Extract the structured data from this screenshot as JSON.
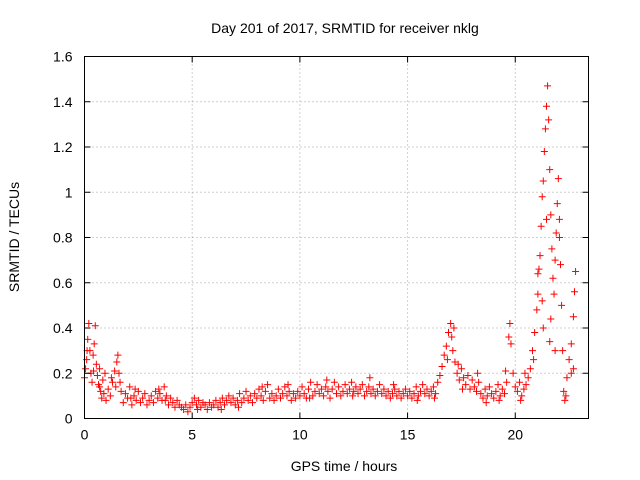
{
  "chart_data": {
    "type": "scatter",
    "title": "Day 201 of 2017, SRMTID for receiver nklg",
    "xlabel": "GPS time / hours",
    "ylabel": "SRMTID / TECUs",
    "xlim": [
      0,
      23.4
    ],
    "ylim": [
      0,
      1.6
    ],
    "xticks": [
      0,
      5,
      10,
      15,
      20
    ],
    "xtick_labels": [
      "0",
      "5",
      "10",
      "15",
      "20"
    ],
    "yticks": [
      0,
      0.2,
      0.4,
      0.6,
      0.8,
      1.0,
      1.2,
      1.4,
      1.6
    ],
    "ytick_labels": [
      "0",
      "0.2",
      "0.4",
      "0.6",
      "0.8",
      "1",
      "1.2",
      "1.4",
      "1.6"
    ],
    "grid": true,
    "marker": "+",
    "series_color": "#ff0000",
    "series": [
      {
        "name": "SRMTID",
        "points": [
          [
            0.0,
            0.18
          ],
          [
            0.05,
            0.22
          ],
          [
            0.1,
            0.26
          ],
          [
            0.15,
            0.35
          ],
          [
            0.2,
            0.42
          ],
          [
            0.25,
            0.3
          ],
          [
            0.3,
            0.2
          ],
          [
            0.35,
            0.16
          ],
          [
            0.4,
            0.28
          ],
          [
            0.45,
            0.33
          ],
          [
            0.5,
            0.41
          ],
          [
            0.55,
            0.24
          ],
          [
            0.6,
            0.19
          ],
          [
            0.65,
            0.15
          ],
          [
            0.7,
            0.22
          ],
          [
            0.75,
            0.12
          ],
          [
            0.8,
            0.09
          ],
          [
            0.85,
            0.17
          ],
          [
            0.9,
            0.11
          ],
          [
            0.95,
            0.2
          ],
          [
            1.0,
            0.08
          ],
          [
            1.1,
            0.13
          ],
          [
            1.2,
            0.1
          ],
          [
            1.3,
            0.16
          ],
          [
            1.4,
            0.21
          ],
          [
            1.5,
            0.25
          ],
          [
            1.55,
            0.28
          ],
          [
            1.6,
            0.2
          ],
          [
            1.7,
            0.12
          ],
          [
            1.8,
            0.07
          ],
          [
            1.9,
            0.11
          ],
          [
            2.0,
            0.09
          ],
          [
            2.1,
            0.14
          ],
          [
            2.2,
            0.06
          ],
          [
            2.3,
            0.1
          ],
          [
            2.4,
            0.08
          ],
          [
            2.5,
            0.12
          ],
          [
            2.6,
            0.07
          ],
          [
            2.7,
            0.09
          ],
          [
            2.8,
            0.11
          ],
          [
            2.9,
            0.06
          ],
          [
            3.0,
            0.08
          ],
          [
            3.1,
            0.1
          ],
          [
            3.2,
            0.07
          ],
          [
            3.3,
            0.12
          ],
          [
            3.4,
            0.09
          ],
          [
            3.5,
            0.11
          ],
          [
            3.6,
            0.08
          ],
          [
            3.7,
            0.14
          ],
          [
            3.8,
            0.1
          ],
          [
            3.9,
            0.06
          ],
          [
            4.0,
            0.09
          ],
          [
            4.1,
            0.07
          ],
          [
            4.2,
            0.05
          ],
          [
            4.3,
            0.08
          ],
          [
            4.4,
            0.06
          ],
          [
            4.5,
            0.05
          ],
          [
            4.6,
            0.04
          ],
          [
            4.7,
            0.06
          ],
          [
            4.8,
            0.03
          ],
          [
            4.9,
            0.05
          ],
          [
            5.0,
            0.07
          ],
          [
            5.1,
            0.09
          ],
          [
            5.2,
            0.06
          ],
          [
            5.3,
            0.08
          ],
          [
            5.4,
            0.05
          ],
          [
            5.5,
            0.07
          ],
          [
            5.6,
            0.06
          ],
          [
            5.7,
            0.04
          ],
          [
            5.8,
            0.07
          ],
          [
            5.9,
            0.05
          ],
          [
            6.0,
            0.06
          ],
          [
            6.1,
            0.08
          ],
          [
            6.2,
            0.05
          ],
          [
            6.3,
            0.07
          ],
          [
            6.4,
            0.09
          ],
          [
            6.5,
            0.06
          ],
          [
            6.6,
            0.08
          ],
          [
            6.7,
            0.1
          ],
          [
            6.8,
            0.07
          ],
          [
            6.9,
            0.09
          ],
          [
            7.0,
            0.06
          ],
          [
            7.1,
            0.08
          ],
          [
            7.2,
            0.11
          ],
          [
            7.3,
            0.07
          ],
          [
            7.4,
            0.09
          ],
          [
            7.5,
            0.12
          ],
          [
            7.6,
            0.08
          ],
          [
            7.7,
            0.1
          ],
          [
            7.8,
            0.07
          ],
          [
            7.9,
            0.11
          ],
          [
            8.0,
            0.09
          ],
          [
            8.1,
            0.13
          ],
          [
            8.2,
            0.1
          ],
          [
            8.3,
            0.08
          ],
          [
            8.4,
            0.12
          ],
          [
            8.5,
            0.15
          ],
          [
            8.6,
            0.09
          ],
          [
            8.7,
            0.11
          ],
          [
            8.8,
            0.08
          ],
          [
            8.9,
            0.1
          ],
          [
            9.0,
            0.13
          ],
          [
            9.1,
            0.09
          ],
          [
            9.2,
            0.11
          ],
          [
            9.3,
            0.14
          ],
          [
            9.4,
            0.1
          ],
          [
            9.5,
            0.12
          ],
          [
            9.6,
            0.08
          ],
          [
            9.7,
            0.11
          ],
          [
            9.8,
            0.09
          ],
          [
            9.9,
            0.12
          ],
          [
            10.0,
            0.1
          ],
          [
            10.1,
            0.14
          ],
          [
            10.2,
            0.11
          ],
          [
            10.3,
            0.09
          ],
          [
            10.4,
            0.13
          ],
          [
            10.5,
            0.16
          ],
          [
            10.6,
            0.1
          ],
          [
            10.7,
            0.12
          ],
          [
            10.8,
            0.15
          ],
          [
            10.9,
            0.11
          ],
          [
            11.0,
            0.13
          ],
          [
            11.1,
            0.1
          ],
          [
            11.2,
            0.14
          ],
          [
            11.3,
            0.12
          ],
          [
            11.4,
            0.09
          ],
          [
            11.5,
            0.13
          ],
          [
            11.6,
            0.16
          ],
          [
            11.7,
            0.11
          ],
          [
            11.8,
            0.14
          ],
          [
            11.9,
            0.1
          ],
          [
            12.0,
            0.12
          ],
          [
            12.1,
            0.15
          ],
          [
            12.2,
            0.11
          ],
          [
            12.3,
            0.13
          ],
          [
            12.4,
            0.16
          ],
          [
            12.5,
            0.12
          ],
          [
            12.6,
            0.14
          ],
          [
            12.7,
            0.11
          ],
          [
            12.8,
            0.13
          ],
          [
            12.9,
            0.15
          ],
          [
            13.0,
            0.1
          ],
          [
            13.1,
            0.12
          ],
          [
            13.2,
            0.14
          ],
          [
            13.3,
            0.11
          ],
          [
            13.4,
            0.13
          ],
          [
            13.5,
            0.1
          ],
          [
            13.6,
            0.12
          ],
          [
            13.7,
            0.15
          ],
          [
            13.8,
            0.11
          ],
          [
            13.9,
            0.13
          ],
          [
            14.0,
            0.1
          ],
          [
            14.1,
            0.12
          ],
          [
            14.2,
            0.09
          ],
          [
            14.3,
            0.11
          ],
          [
            14.4,
            0.13
          ],
          [
            14.5,
            0.1
          ],
          [
            14.6,
            0.12
          ],
          [
            14.7,
            0.09
          ],
          [
            14.8,
            0.11
          ],
          [
            14.9,
            0.13
          ],
          [
            15.0,
            0.1
          ],
          [
            15.1,
            0.12
          ],
          [
            15.2,
            0.09
          ],
          [
            15.3,
            0.11
          ],
          [
            15.4,
            0.14
          ],
          [
            15.5,
            0.1
          ],
          [
            15.6,
            0.12
          ],
          [
            15.7,
            0.15
          ],
          [
            15.8,
            0.11
          ],
          [
            15.9,
            0.13
          ],
          [
            16.0,
            0.1
          ],
          [
            16.1,
            0.12
          ],
          [
            16.2,
            0.14
          ],
          [
            16.3,
            0.11
          ],
          [
            16.4,
            0.16
          ],
          [
            16.5,
            0.19
          ],
          [
            16.6,
            0.23
          ],
          [
            16.7,
            0.28
          ],
          [
            16.8,
            0.32
          ],
          [
            16.9,
            0.38
          ],
          [
            17.0,
            0.42
          ],
          [
            17.05,
            0.36
          ],
          [
            17.1,
            0.3
          ],
          [
            17.2,
            0.25
          ],
          [
            17.3,
            0.2
          ],
          [
            17.4,
            0.17
          ],
          [
            17.5,
            0.22
          ],
          [
            17.6,
            0.18
          ],
          [
            17.7,
            0.15
          ],
          [
            17.8,
            0.19
          ],
          [
            17.9,
            0.13
          ],
          [
            18.0,
            0.17
          ],
          [
            18.1,
            0.14
          ],
          [
            18.2,
            0.12
          ],
          [
            18.3,
            0.16
          ],
          [
            18.4,
            0.11
          ],
          [
            18.5,
            0.09
          ],
          [
            18.6,
            0.13
          ],
          [
            18.7,
            0.1
          ],
          [
            18.8,
            0.14
          ],
          [
            18.9,
            0.11
          ],
          [
            19.0,
            0.09
          ],
          [
            19.1,
            0.12
          ],
          [
            19.2,
            0.15
          ],
          [
            19.3,
            0.1
          ],
          [
            19.4,
            0.13
          ],
          [
            19.5,
            0.11
          ],
          [
            19.6,
            0.16
          ],
          [
            19.7,
            0.36
          ],
          [
            19.75,
            0.42
          ],
          [
            19.8,
            0.33
          ],
          [
            19.9,
            0.2
          ],
          [
            20.0,
            0.14
          ],
          [
            20.1,
            0.12
          ],
          [
            20.2,
            0.16
          ],
          [
            20.3,
            0.1
          ],
          [
            20.4,
            0.13
          ],
          [
            20.5,
            0.15
          ],
          [
            20.6,
            0.18
          ],
          [
            20.7,
            0.22
          ],
          [
            20.8,
            0.3
          ],
          [
            20.9,
            0.38
          ],
          [
            21.0,
            0.48
          ],
          [
            21.05,
            0.55
          ],
          [
            21.1,
            0.66
          ],
          [
            21.15,
            0.72
          ],
          [
            21.2,
            0.85
          ],
          [
            21.25,
            0.98
          ],
          [
            21.3,
            1.05
          ],
          [
            21.35,
            1.18
          ],
          [
            21.4,
            1.28
          ],
          [
            21.45,
            1.38
          ],
          [
            21.5,
            1.47
          ],
          [
            21.55,
            1.32
          ],
          [
            21.6,
            1.1
          ],
          [
            21.65,
            0.9
          ],
          [
            21.7,
            0.75
          ],
          [
            21.75,
            0.62
          ],
          [
            21.8,
            0.55
          ],
          [
            21.85,
            0.7
          ],
          [
            21.9,
            0.82
          ],
          [
            21.95,
            0.95
          ],
          [
            22.0,
            1.06
          ],
          [
            22.05,
            0.88
          ],
          [
            22.1,
            0.68
          ],
          [
            22.15,
            0.5
          ],
          [
            22.2,
            0.3
          ],
          [
            22.25,
            0.12
          ],
          [
            22.3,
            0.08
          ],
          [
            22.35,
            0.1
          ],
          [
            22.4,
            0.18
          ],
          [
            22.5,
            0.26
          ],
          [
            22.6,
            0.33
          ],
          [
            22.7,
            0.45
          ],
          [
            22.75,
            0.56
          ],
          [
            22.8,
            0.65
          ],
          [
            22.7,
            0.22
          ],
          [
            21.3,
            0.4
          ],
          [
            21.6,
            0.34
          ],
          [
            0.12,
            0.3
          ],
          [
            0.42,
            0.21
          ],
          [
            0.7,
            0.14
          ],
          [
            1.25,
            0.18
          ],
          [
            1.45,
            0.14
          ],
          [
            1.65,
            0.16
          ],
          [
            2.15,
            0.09
          ],
          [
            2.35,
            0.13
          ],
          [
            3.45,
            0.13
          ],
          [
            3.75,
            0.08
          ],
          [
            5.25,
            0.04
          ],
          [
            6.35,
            0.04
          ],
          [
            7.15,
            0.05
          ],
          [
            8.25,
            0.14
          ],
          [
            9.45,
            0.15
          ],
          [
            10.45,
            0.09
          ],
          [
            11.25,
            0.17
          ],
          [
            12.45,
            0.1
          ],
          [
            13.25,
            0.18
          ],
          [
            14.35,
            0.15
          ],
          [
            15.45,
            0.08
          ],
          [
            16.25,
            0.09
          ],
          [
            16.85,
            0.26
          ],
          [
            17.15,
            0.4
          ],
          [
            17.35,
            0.24
          ],
          [
            17.55,
            0.13
          ],
          [
            18.25,
            0.2
          ],
          [
            18.65,
            0.07
          ],
          [
            19.25,
            0.08
          ],
          [
            19.55,
            0.21
          ],
          [
            20.25,
            0.08
          ],
          [
            20.45,
            0.2
          ],
          [
            20.85,
            0.26
          ],
          [
            21.05,
            0.64
          ],
          [
            21.25,
            0.52
          ],
          [
            21.45,
            0.88
          ],
          [
            21.65,
            0.44
          ],
          [
            21.85,
            0.3
          ],
          [
            22.05,
            0.8
          ],
          [
            22.6,
            0.2
          ]
        ]
      }
    ]
  }
}
